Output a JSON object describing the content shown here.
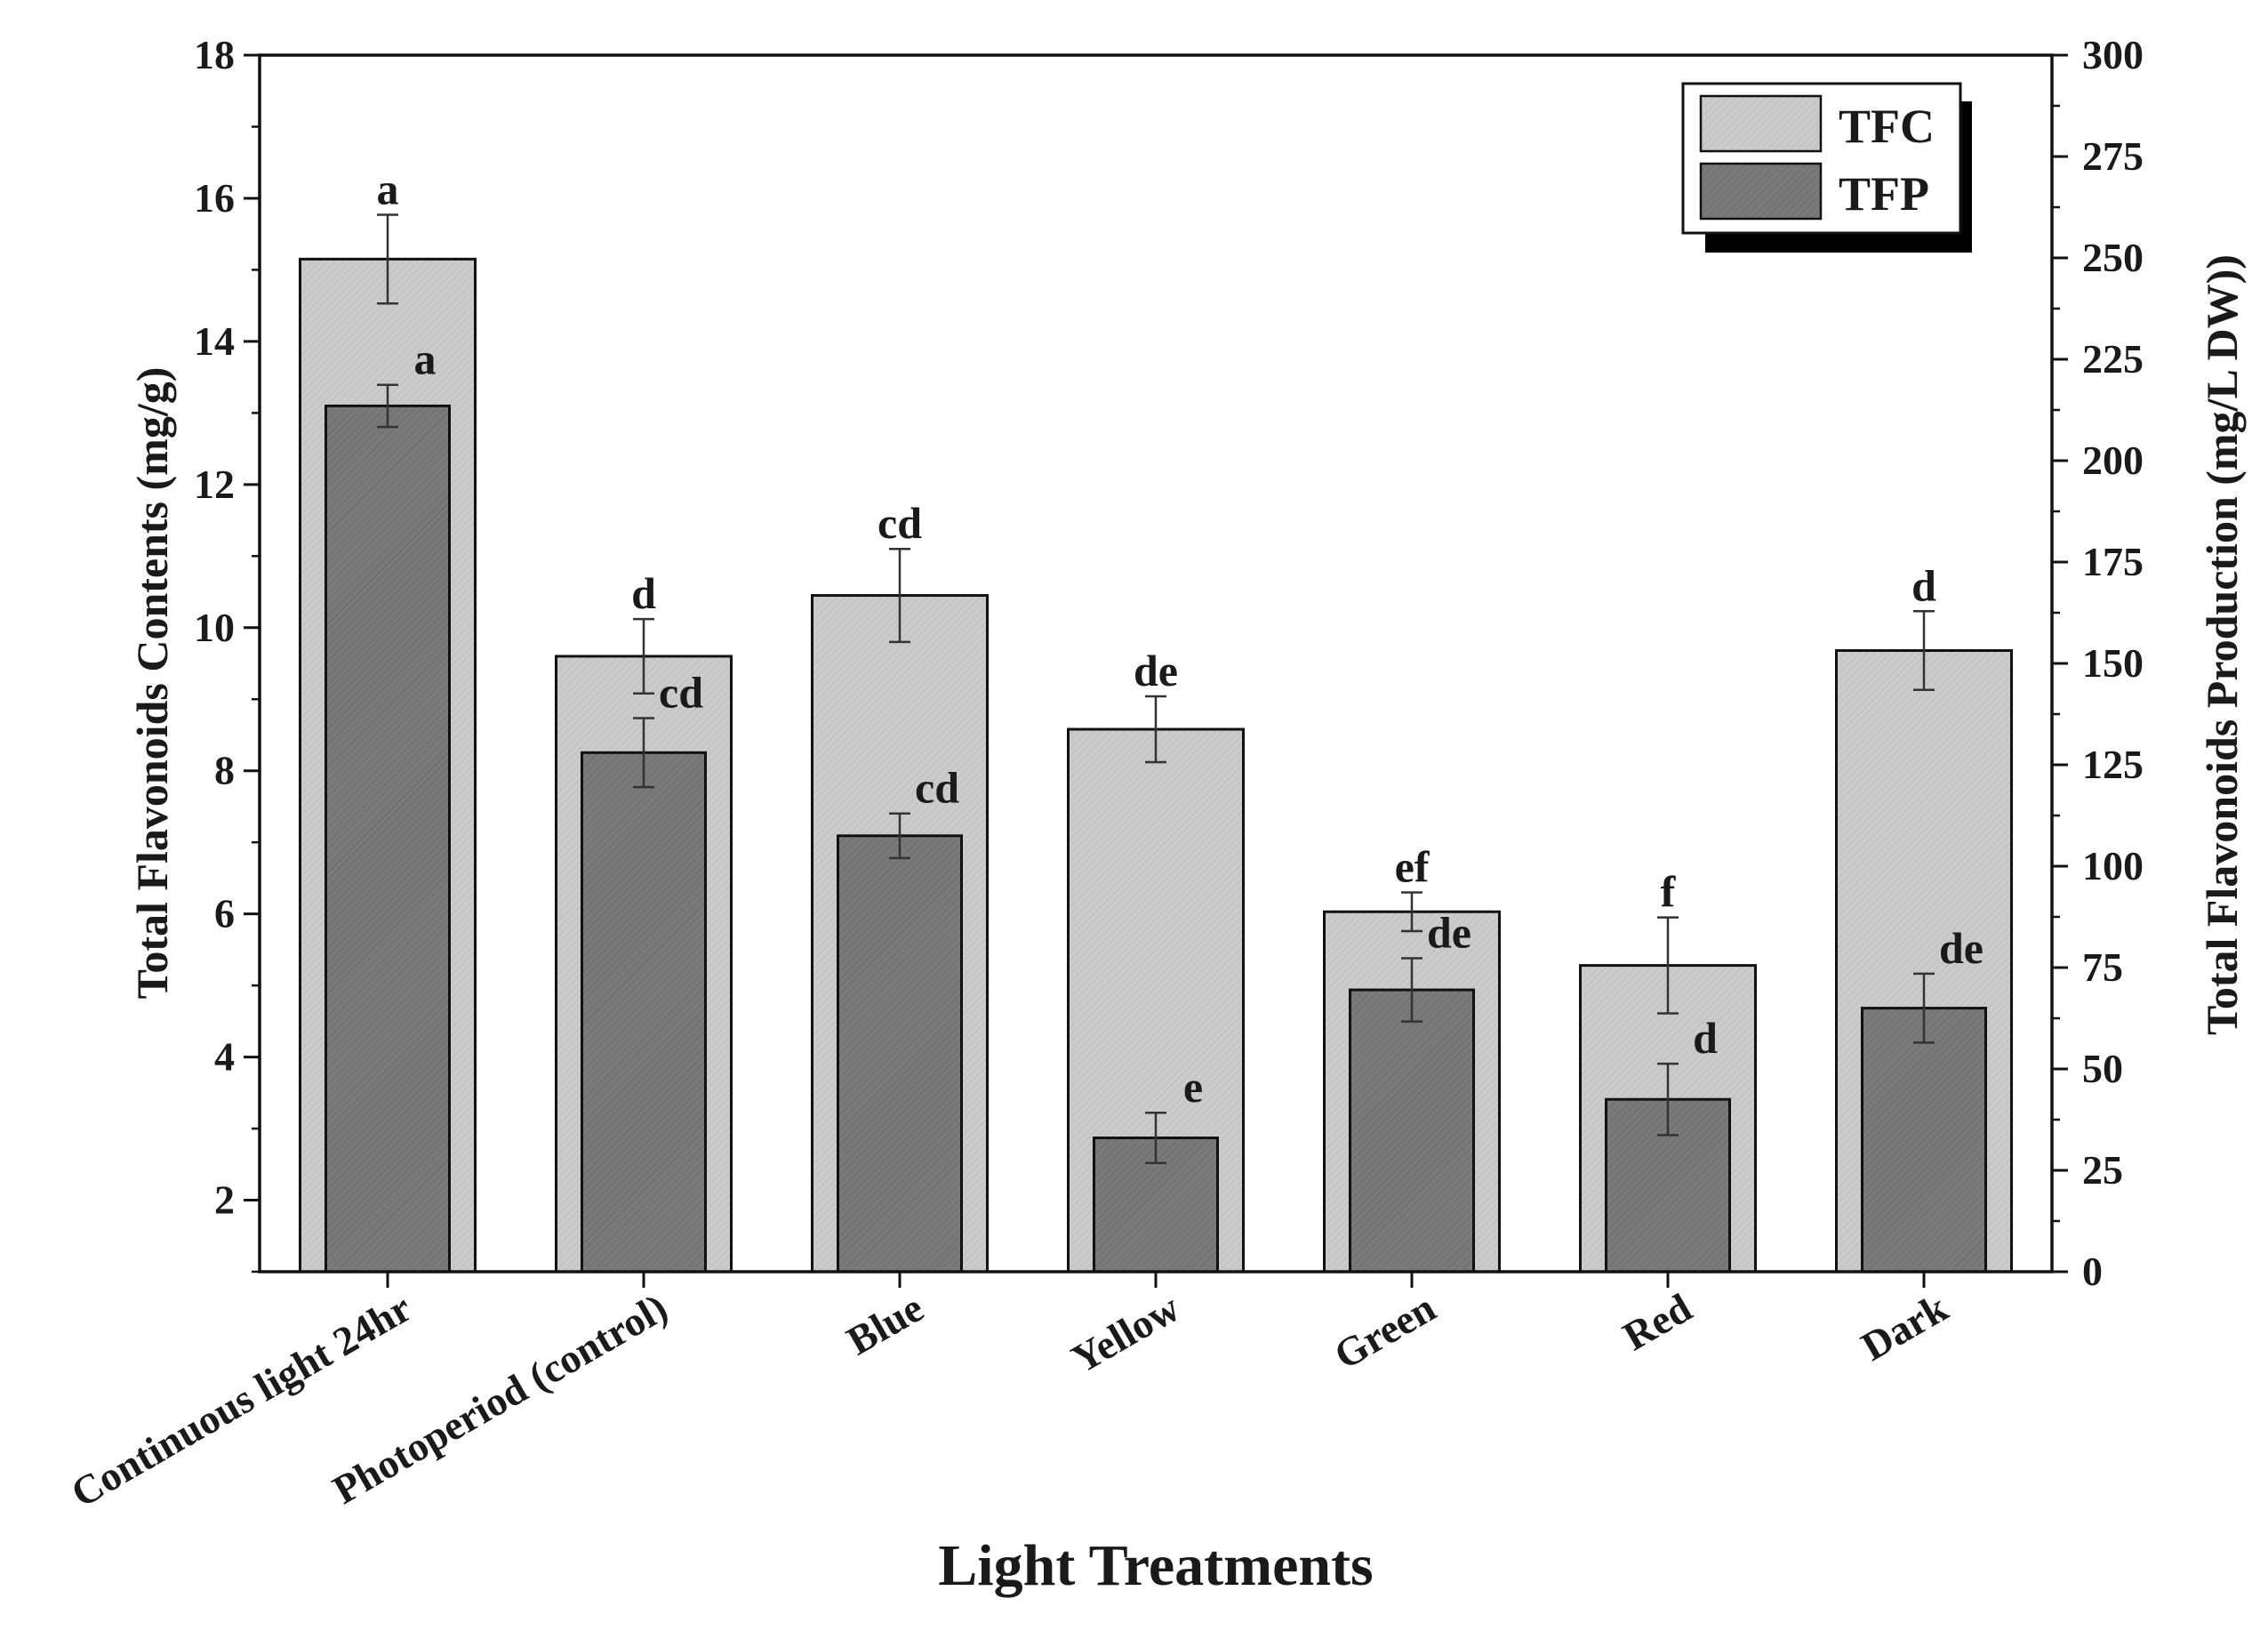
{
  "chart_data": {
    "type": "bar",
    "xlabel": "Light Treatments",
    "ylabel_left": "Total Flavonoids Contents (mg/g)",
    "ylabel_right": "Total Flavonoids Production (mg/L DW))",
    "ylim_left": [
      1,
      18
    ],
    "ylim_right": [
      0,
      300
    ],
    "yticks_left": [
      2,
      4,
      6,
      8,
      10,
      12,
      14,
      16,
      18
    ],
    "yticks_right": [
      0,
      25,
      50,
      75,
      100,
      125,
      150,
      175,
      200,
      225,
      250,
      275,
      300
    ],
    "categories": [
      "Continuous light 24hr",
      "Photoperiod (control)",
      "Blue",
      "Yellow",
      "Green",
      "Red",
      "Dark"
    ],
    "legend_position": "top-right",
    "series": [
      {
        "name": "TFC",
        "axis": "left",
        "color": "#cbcbcb",
        "values": [
          15.15,
          9.6,
          10.45,
          8.58,
          6.03,
          5.28,
          9.68
        ],
        "errors": [
          0.62,
          0.52,
          0.65,
          0.46,
          0.27,
          0.67,
          0.55
        ],
        "labels": [
          "a",
          "d",
          "cd",
          "de",
          "ef",
          "f",
          "d"
        ]
      },
      {
        "name": "TFP",
        "axis": "right",
        "color": "#7a7a7a",
        "values": [
          213.5,
          128,
          107.5,
          33,
          69.5,
          42.5,
          65
        ],
        "errors": [
          5.2,
          8.5,
          5.5,
          6.2,
          7.8,
          8.8,
          8.5
        ],
        "labels": [
          "a",
          "cd",
          "cd",
          "e",
          "de",
          "d",
          "de"
        ]
      }
    ]
  }
}
